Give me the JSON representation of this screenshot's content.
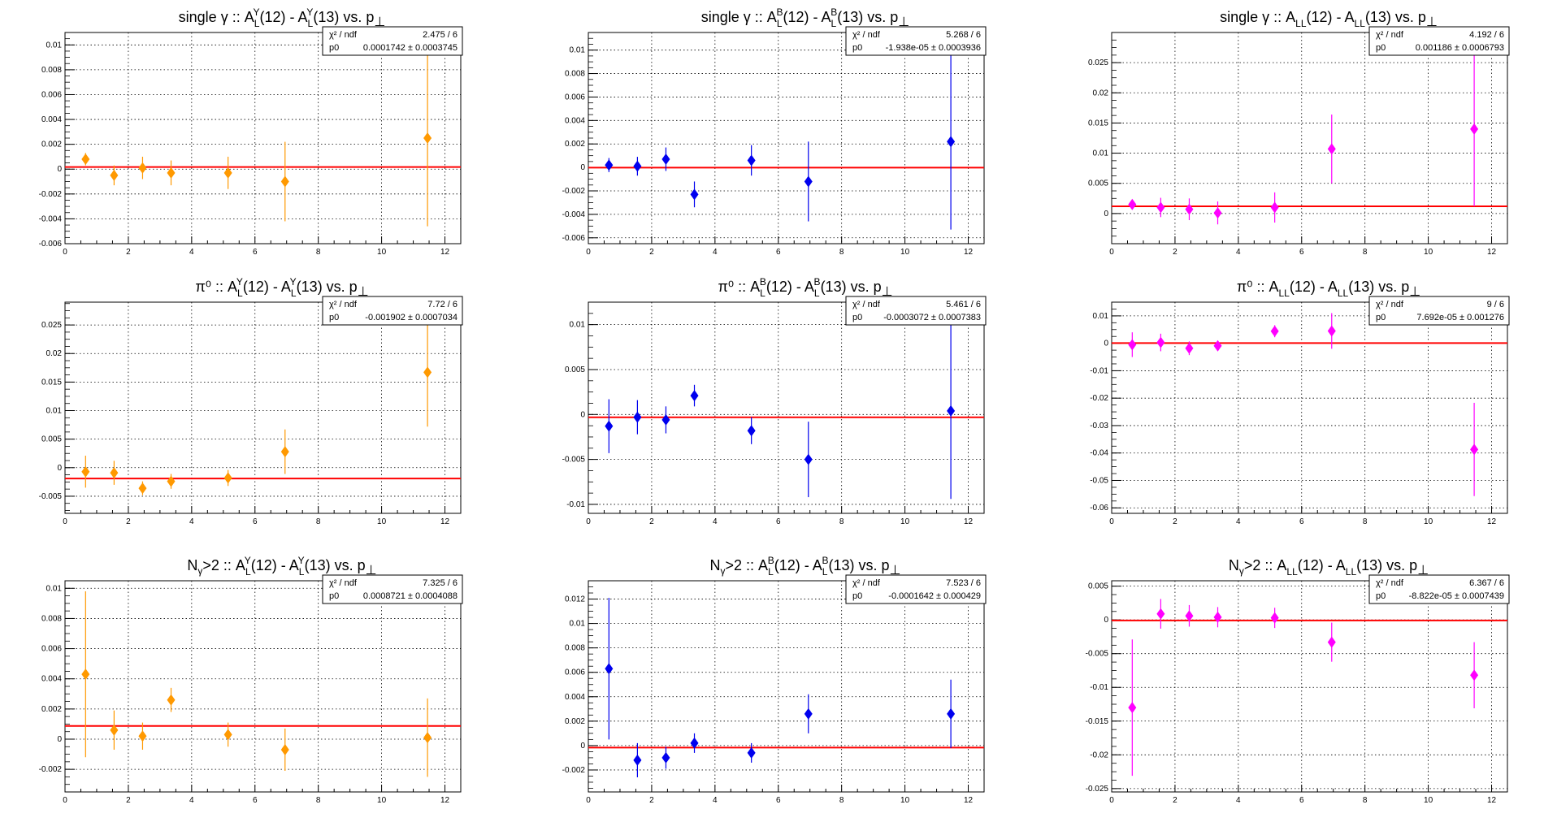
{
  "chart_data": [
    {
      "type": "scatter",
      "title": "single γ :: A_L^Y(12) - A_L^Y(13) vs. p_⊥",
      "title_parts": {
        "pre": "single γ :: A",
        "s1": "L",
        "u1": "Y",
        "mid": "(12) - A",
        "s2": "L",
        "u2": "Y",
        "post": "(13) vs. p",
        "pt": "⊥"
      },
      "color": "#ff9900",
      "xlim": [
        0,
        12.5
      ],
      "ylim": [
        -0.006,
        0.011
      ],
      "xticks": [
        "0",
        "2",
        "4",
        "6",
        "8",
        "10",
        "12"
      ],
      "yticks": [
        -0.006,
        -0.004,
        -0.002,
        0,
        0.002,
        0.004,
        0.006,
        0.008,
        0.01
      ],
      "ytick_labels": [
        "-0.006",
        "-0.004",
        "-0.002",
        "0",
        "0.002",
        "0.004",
        "0.006",
        "0.008",
        "0.01"
      ],
      "x": [
        0.65,
        1.55,
        2.45,
        3.35,
        5.15,
        6.95,
        11.45
      ],
      "y": [
        0.0008,
        -0.0005,
        0.0001,
        -0.0003,
        -0.0003,
        -0.001,
        0.0025
      ],
      "yerr": [
        0.0005,
        0.0008,
        0.0009,
        0.001,
        0.0013,
        0.0032,
        0.0071
      ],
      "fit_p0": 0.0001742,
      "stats": {
        "chi2_label": "χ² / ndf",
        "chi2_value": "2.475 / 6",
        "p0_label": "p0",
        "p0_value": "0.0001742 ± 0.0003745"
      }
    },
    {
      "type": "scatter",
      "title": "single γ :: A_L^B(12) - A_L^B(13) vs. p_⊥",
      "title_parts": {
        "pre": "single γ :: A",
        "s1": "L",
        "u1": "B",
        "mid": "(12) - A",
        "s2": "L",
        "u2": "B",
        "post": "(13) vs. p",
        "pt": "⊥"
      },
      "color": "#0000ee",
      "xlim": [
        0,
        12.5
      ],
      "ylim": [
        -0.0065,
        0.0115
      ],
      "xticks": [
        "0",
        "2",
        "4",
        "6",
        "8",
        "10",
        "12"
      ],
      "yticks": [
        -0.006,
        -0.004,
        -0.002,
        0,
        0.002,
        0.004,
        0.006,
        0.008,
        0.01
      ],
      "ytick_labels": [
        "-0.006",
        "-0.004",
        "-0.002",
        "0",
        "0.002",
        "0.004",
        "0.006",
        "0.008",
        "0.01"
      ],
      "x": [
        0.65,
        1.55,
        2.45,
        3.35,
        5.15,
        6.95,
        11.45
      ],
      "y": [
        0.0002,
        0.0001,
        0.0007,
        -0.0023,
        0.0006,
        -0.0012,
        0.0022
      ],
      "yerr": [
        0.0006,
        0.0008,
        0.001,
        0.0011,
        0.0013,
        0.0034,
        0.0075
      ],
      "fit_p0": -1.938e-05,
      "stats": {
        "chi2_label": "χ² / ndf",
        "chi2_value": "5.268 / 6",
        "p0_label": "p0",
        "p0_value": "-1.938e-05 ± 0.0003936"
      }
    },
    {
      "type": "scatter",
      "title": "single γ :: A_LL(12) - A_LL(13) vs. p_⊥",
      "title_parts": {
        "pre": "single γ :: A",
        "s1": "LL",
        "u1": "",
        "mid": "(12) - A",
        "s2": "LL",
        "u2": "",
        "post": "(13) vs. p",
        "pt": "⊥"
      },
      "color": "#ff00ff",
      "xlim": [
        0,
        12.5
      ],
      "ylim": [
        -0.005,
        0.03
      ],
      "xticks": [
        "0",
        "2",
        "4",
        "6",
        "8",
        "10",
        "12"
      ],
      "yticks": [
        0,
        0.005,
        0.01,
        0.015,
        0.02,
        0.025
      ],
      "ytick_labels": [
        "0",
        "0.005",
        "0.01",
        "0.015",
        "0.02",
        "0.025"
      ],
      "x": [
        0.65,
        1.55,
        2.45,
        3.35,
        5.15,
        6.95,
        11.45
      ],
      "y": [
        0.0015,
        0.001,
        0.0007,
        0.0001,
        0.001,
        0.0107,
        0.014
      ],
      "yerr": [
        0.0008,
        0.0016,
        0.0018,
        0.0019,
        0.0025,
        0.0057,
        0.0128
      ],
      "fit_p0": 0.001186,
      "stats": {
        "chi2_label": "χ² / ndf",
        "chi2_value": "4.192 / 6",
        "p0_label": "p0",
        "p0_value": "0.001186 ± 0.0006793"
      }
    },
    {
      "type": "scatter",
      "title": "π⁰ :: A_L^Y(12) - A_L^Y(13) vs. p_⊥",
      "title_parts": {
        "pre": "π⁰ :: A",
        "s1": "L",
        "u1": "Y",
        "mid": "(12) - A",
        "s2": "L",
        "u2": "Y",
        "post": "(13) vs. p",
        "pt": "⊥"
      },
      "color": "#ff9900",
      "xlim": [
        0,
        12.5
      ],
      "ylim": [
        -0.008,
        0.029
      ],
      "xticks": [
        "0",
        "2",
        "4",
        "6",
        "8",
        "10",
        "12"
      ],
      "yticks": [
        -0.005,
        0,
        0.005,
        0.01,
        0.015,
        0.02,
        0.025
      ],
      "ytick_labels": [
        "-0.005",
        "0",
        "0.005",
        "0.01",
        "0.015",
        "0.02",
        "0.025"
      ],
      "x": [
        0.65,
        1.55,
        2.45,
        3.35,
        5.15,
        6.95,
        11.45
      ],
      "y": [
        -0.0007,
        -0.0009,
        -0.0036,
        -0.0024,
        -0.0018,
        0.0028,
        0.0167
      ],
      "yerr": [
        0.0028,
        0.0021,
        0.0012,
        0.0013,
        0.0014,
        0.0039,
        0.0095
      ],
      "fit_p0": -0.001902,
      "stats": {
        "chi2_label": "χ² / ndf",
        "chi2_value": "7.72 / 6",
        "p0_label": "p0",
        "p0_value": "-0.001902 ± 0.0007034"
      }
    },
    {
      "type": "scatter",
      "title": "π⁰ :: A_L^B(12) - A_L^B(13) vs. p_⊥",
      "title_parts": {
        "pre": "π⁰ :: A",
        "s1": "L",
        "u1": "B",
        "mid": "(12) - A",
        "s2": "L",
        "u2": "B",
        "post": "(13) vs. p",
        "pt": "⊥"
      },
      "color": "#0000ee",
      "xlim": [
        0,
        12.5
      ],
      "ylim": [
        -0.011,
        0.0125
      ],
      "xticks": [
        "0",
        "2",
        "4",
        "6",
        "8",
        "10",
        "12"
      ],
      "yticks": [
        -0.01,
        -0.005,
        0,
        0.005,
        0.01
      ],
      "ytick_labels": [
        "-0.01",
        "-0.005",
        "0",
        "0.005",
        "0.01"
      ],
      "x": [
        0.65,
        1.55,
        2.45,
        3.35,
        5.15,
        6.95,
        11.45
      ],
      "y": [
        -0.0013,
        -0.0003,
        -0.0006,
        0.0021,
        -0.0018,
        -0.005,
        0.0004
      ],
      "yerr": [
        0.003,
        0.0019,
        0.0015,
        0.0012,
        0.0015,
        0.0042,
        0.0098
      ],
      "fit_p0": -0.0003072,
      "stats": {
        "chi2_label": "χ² / ndf",
        "chi2_value": "5.461 / 6",
        "p0_label": "p0",
        "p0_value": "-0.0003072 ± 0.0007383"
      }
    },
    {
      "type": "scatter",
      "title": "π⁰ :: A_LL(12) - A_LL(13) vs. p_⊥",
      "title_parts": {
        "pre": "π⁰ :: A",
        "s1": "LL",
        "u1": "",
        "mid": "(12) - A",
        "s2": "LL",
        "u2": "",
        "post": "(13) vs. p",
        "pt": "⊥"
      },
      "color": "#ff00ff",
      "xlim": [
        0,
        12.5
      ],
      "ylim": [
        -0.062,
        0.015
      ],
      "xticks": [
        "0",
        "2",
        "4",
        "6",
        "8",
        "10",
        "12"
      ],
      "yticks": [
        -0.06,
        -0.05,
        -0.04,
        -0.03,
        -0.02,
        -0.01,
        0,
        0.01
      ],
      "ytick_labels": [
        "-0.06",
        "-0.05",
        "-0.04",
        "-0.03",
        "-0.02",
        "-0.01",
        "0",
        "0.01"
      ],
      "x": [
        0.65,
        1.55,
        2.45,
        3.35,
        5.15,
        6.95,
        11.45
      ],
      "y": [
        -0.0005,
        0.0003,
        -0.0018,
        -0.0009,
        0.0044,
        0.0045,
        -0.0387
      ],
      "yerr": [
        0.0045,
        0.0032,
        0.0025,
        0.0018,
        0.0022,
        0.0065,
        0.017
      ],
      "fit_p0": 7.692e-05,
      "stats": {
        "chi2_label": "χ² / ndf",
        "chi2_value": "9 / 6",
        "p0_label": "p0",
        "p0_value": "7.692e-05 ± 0.001276"
      }
    },
    {
      "type": "scatter",
      "title": "N_γ>2 :: A_L^Y(12) - A_L^Y(13) vs. p_⊥",
      "title_parts": {
        "pre": "N",
        "pre_sub": "γ",
        "pre2": ">2 :: A",
        "s1": "L",
        "u1": "Y",
        "mid": "(12) - A",
        "s2": "L",
        "u2": "Y",
        "post": "(13) vs. p",
        "pt": "⊥"
      },
      "color": "#ff9900",
      "xlim": [
        0,
        12.5
      ],
      "ylim": [
        -0.0035,
        0.0105
      ],
      "xticks": [
        "0",
        "2",
        "4",
        "6",
        "8",
        "10",
        "12"
      ],
      "yticks": [
        -0.002,
        0,
        0.002,
        0.004,
        0.006,
        0.008,
        0.01
      ],
      "ytick_labels": [
        "-0.002",
        "0",
        "0.002",
        "0.004",
        "0.006",
        "0.008",
        "0.01"
      ],
      "x": [
        0.65,
        1.55,
        2.45,
        3.35,
        5.15,
        6.95,
        11.45
      ],
      "y": [
        0.0043,
        0.0006,
        0.0002,
        0.0026,
        0.0003,
        -0.0007,
        0.0001
      ],
      "yerr": [
        0.0055,
        0.0013,
        0.0009,
        0.0008,
        0.0008,
        0.0014,
        0.0026
      ],
      "fit_p0": 0.0008721,
      "stats": {
        "chi2_label": "χ² / ndf",
        "chi2_value": "7.325 / 6",
        "p0_label": "p0",
        "p0_value": "0.0008721 ± 0.0004088"
      }
    },
    {
      "type": "scatter",
      "title": "N_γ>2 :: A_L^B(12) - A_L^B(13) vs. p_⊥",
      "title_parts": {
        "pre": "N",
        "pre_sub": "γ",
        "pre2": ">2 :: A",
        "s1": "L",
        "u1": "B",
        "mid": "(12) - A",
        "s2": "L",
        "u2": "B",
        "post": "(13) vs. p",
        "pt": "⊥"
      },
      "color": "#0000ee",
      "xlim": [
        0,
        12.5
      ],
      "ylim": [
        -0.0038,
        0.0135
      ],
      "xticks": [
        "0",
        "2",
        "4",
        "6",
        "8",
        "10",
        "12"
      ],
      "yticks": [
        -0.002,
        0,
        0.002,
        0.004,
        0.006,
        0.008,
        0.01,
        0.012
      ],
      "ytick_labels": [
        "-0.002",
        "0",
        "0.002",
        "0.004",
        "0.006",
        "0.008",
        "0.01",
        "0.012"
      ],
      "x": [
        0.65,
        1.55,
        2.45,
        3.35,
        5.15,
        6.95,
        11.45
      ],
      "y": [
        0.0063,
        -0.0012,
        -0.001,
        0.0002,
        -0.0006,
        0.0026,
        0.0026
      ],
      "yerr": [
        0.0058,
        0.0014,
        0.0009,
        0.0008,
        0.0008,
        0.0016,
        0.0028
      ],
      "fit_p0": -0.0001642,
      "stats": {
        "chi2_label": "χ² / ndf",
        "chi2_value": "7.523 / 6",
        "p0_label": "p0",
        "p0_value": "-0.0001642 ± 0.000429"
      }
    },
    {
      "type": "scatter",
      "title": "N_γ>2 :: A_LL(12) - A_LL(13) vs. p_⊥",
      "title_parts": {
        "pre": "N",
        "pre_sub": "γ",
        "pre2": ">2 :: A",
        "s1": "LL",
        "u1": "",
        "mid": "(12) - A",
        "s2": "LL",
        "u2": "",
        "post": "(13) vs. p",
        "pt": "⊥"
      },
      "color": "#ff00ff",
      "xlim": [
        0,
        12.5
      ],
      "ylim": [
        -0.0255,
        0.0058
      ],
      "xticks": [
        "0",
        "2",
        "4",
        "6",
        "8",
        "10",
        "12"
      ],
      "yticks": [
        -0.025,
        -0.02,
        -0.015,
        -0.01,
        -0.005,
        0,
        0.005
      ],
      "ytick_labels": [
        "-0.025",
        "-0.02",
        "-0.015",
        "-0.01",
        "-0.005",
        "0",
        "0.005"
      ],
      "x": [
        0.65,
        1.55,
        2.45,
        3.35,
        5.15,
        6.95,
        11.45
      ],
      "y": [
        -0.013,
        0.0009,
        0.0006,
        0.0004,
        0.0003,
        -0.0033,
        -0.0082
      ],
      "yerr": [
        0.0101,
        0.0022,
        0.0016,
        0.0015,
        0.0015,
        0.0029,
        0.0049
      ],
      "fit_p0": -8.822e-05,
      "stats": {
        "chi2_label": "χ² / ndf",
        "chi2_value": "6.367 / 6",
        "p0_label": "p0",
        "p0_value": "-8.822e-05 ± 0.0007439"
      }
    }
  ]
}
